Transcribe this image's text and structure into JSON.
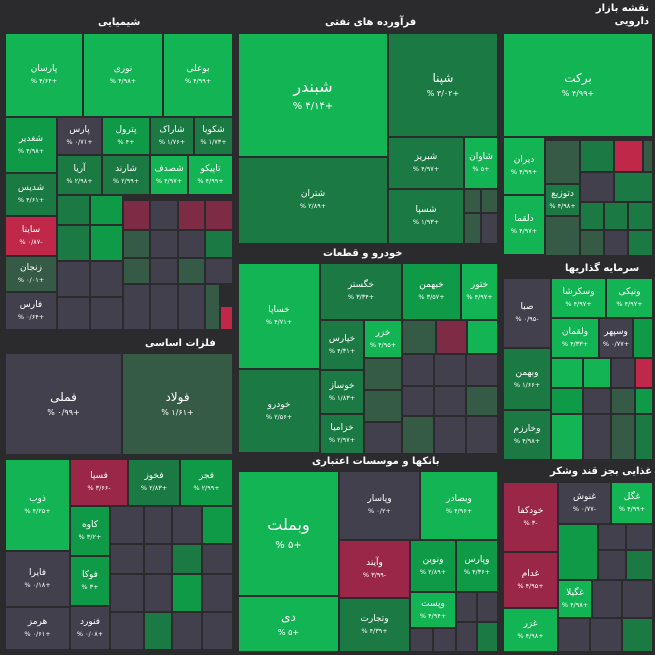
{
  "map_title": [
    "نقشه بازار",
    "دارویی"
  ],
  "sectors": {
    "chem": "شیمیایی",
    "oil": "فرآورده های نفتی",
    "auto": "خودرو و قطعات",
    "metals": "فلزات اساسی",
    "invest": "سرمایه گذاریها",
    "banks": "بانکها و موسسات اعتباری",
    "food": "غذایی بجز قند وشکر"
  },
  "tiles": [
    {
      "id": "parsan",
      "sym": "پارسان",
      "pct": "+۴/۶۴ %"
    },
    {
      "id": "noori",
      "sym": "نوری",
      "pct": "+۴/۹۸ %"
    },
    {
      "id": "boali",
      "sym": "بوعلی",
      "pct": "+۴/۹۹ %"
    },
    {
      "id": "shabandar",
      "sym": "شبندر",
      "pct": "+۴/۱۴ %"
    },
    {
      "id": "shapna",
      "sym": "شپنا",
      "pct": "+۳/۰۲ %"
    },
    {
      "id": "barkat",
      "sym": "برکت",
      "pct": "+۴/۹۹ %"
    },
    {
      "id": "shghadir",
      "sym": "شغدیر",
      "pct": "+۴/۹۸ %"
    },
    {
      "id": "pars",
      "sym": "پارس",
      "pct": "+۰/۷۱ %"
    },
    {
      "id": "petrol",
      "sym": "پترول",
      "pct": "+۴ %"
    },
    {
      "id": "shrak",
      "sym": "شاراک",
      "pct": "+۱/۷۶ %"
    },
    {
      "id": "shkoya",
      "sym": "شکویا",
      "pct": "+۱/۷۳ %"
    },
    {
      "id": "shavan",
      "sym": "شاوان",
      "pct": "+۵ %"
    },
    {
      "id": "shdis",
      "sym": "شدیس",
      "pct": "+۴/۶۱ %"
    },
    {
      "id": "arya",
      "sym": "آریا",
      "pct": "+۲/۹۸ %"
    },
    {
      "id": "sharand",
      "sym": "شارند",
      "pct": "+۲/۹۹ %"
    },
    {
      "id": "shsadf",
      "sym": "شصدف",
      "pct": "+۴/۹۷ %"
    },
    {
      "id": "tapiko",
      "sym": "تاپیکو",
      "pct": "+۴/۹۹ %"
    },
    {
      "id": "shtran",
      "sym": "شتران",
      "pct": "+۲/۸۹ %"
    },
    {
      "id": "shbriz",
      "sym": "شبریز",
      "pct": "+۴/۹۷ %"
    },
    {
      "id": "diran",
      "sym": "دیران",
      "pct": "+۴/۹۹ %"
    },
    {
      "id": "dtozi",
      "sym": "دتوزیع",
      "pct": "+۴/۹۸ %"
    },
    {
      "id": "saina",
      "sym": "ساینا",
      "pct": "-۰/۸۷ %"
    },
    {
      "id": "shsepa",
      "sym": "شسپا",
      "pct": "+۱/۹۳ %"
    },
    {
      "id": "dalqma",
      "sym": "دلقما",
      "pct": "+۴/۹۷ %"
    },
    {
      "id": "zanjan",
      "sym": "زنجان",
      "pct": "+۰/۰۱ %"
    },
    {
      "id": "fars",
      "sym": "فارس",
      "pct": "+۰/۶۴ %"
    },
    {
      "id": "khgostar",
      "sym": "خگستر",
      "pct": "+۳/۳۴ %"
    },
    {
      "id": "khbahman",
      "sym": "خبهمن",
      "pct": "+۳/۵۷ %"
    },
    {
      "id": "khtor",
      "sym": "ختور",
      "pct": "+۴/۹۷ %"
    },
    {
      "id": "seba",
      "sym": "صبا",
      "pct": "-۰/۹۵ %"
    },
    {
      "id": "vaskharsha",
      "sym": "وسکرشا",
      "pct": "+۴/۹۷ %"
    },
    {
      "id": "vnik",
      "sym": "ونیکی",
      "pct": "+۴/۹۷ %"
    },
    {
      "id": "khsapa",
      "sym": "خساپا",
      "pct": "+۴/۷۱ %"
    },
    {
      "id": "khzar",
      "sym": "خزر",
      "pct": "+۴/۹۵ %"
    },
    {
      "id": "khpars",
      "sym": "خپارس",
      "pct": "+۴/۳۱ %"
    },
    {
      "id": "vlqman",
      "sym": "ولقمان",
      "pct": "+۴/۳۳ %"
    },
    {
      "id": "vsepehr",
      "sym": "وسپهر",
      "pct": "+۰/۷۷ %"
    },
    {
      "id": "fameli",
      "sym": "فملی",
      "pct": "+۰/۹۹ %"
    },
    {
      "id": "foolad",
      "sym": "فولاد",
      "pct": "+۱/۶۱ %"
    },
    {
      "id": "khsazh",
      "sym": "خوساز",
      "pct": "+۱/۸۳ %"
    },
    {
      "id": "vbahman",
      "sym": "وبهمن",
      "pct": "+۱/۶۶ %"
    },
    {
      "id": "khodro",
      "sym": "خودرو",
      "pct": "+۲/۵۶ %"
    },
    {
      "id": "khzamya",
      "sym": "خزامیا",
      "pct": "+۲/۹۷ %"
    },
    {
      "id": "vkharzam",
      "sym": "وخارزم",
      "pct": "+۴/۹۸ %"
    },
    {
      "id": "fasepa",
      "sym": "فسپا",
      "pct": "-۳/۶۶ %"
    },
    {
      "id": "fkhuz",
      "sym": "فخوز",
      "pct": "+۲/۸۳ %"
    },
    {
      "id": "fajr",
      "sym": "فجر",
      "pct": "+۲/۹۹ %"
    },
    {
      "id": "vpasar",
      "sym": "وپاسار",
      "pct": "+۰/۲ %"
    },
    {
      "id": "vbsader",
      "sym": "وبصادر",
      "pct": "+۴/۹۶ %"
    },
    {
      "id": "khodkafa",
      "sym": "خودکفا",
      "pct": "-۳ %"
    },
    {
      "id": "ghnosh",
      "sym": "غنوش",
      "pct": "-۰/۷۷ %"
    },
    {
      "id": "ghgol",
      "sym": "غگل",
      "pct": "+۴/۹۹ %"
    },
    {
      "id": "zob",
      "sym": "ذوب",
      "pct": "+۴/۲۵ %"
    },
    {
      "id": "kave",
      "sym": "کاوه",
      "pct": "+۳/۲ %"
    },
    {
      "id": "vbmellat",
      "sym": "وبملت",
      "pct": "+۵ %"
    },
    {
      "id": "vayand",
      "sym": "وآیند",
      "pct": "-۳/۹۹ %"
    },
    {
      "id": "vnovin",
      "sym": "ونوین",
      "pct": "+۲/۸۹ %"
    },
    {
      "id": "vipars",
      "sym": "وپارس",
      "pct": "+۴/۳۶ %"
    },
    {
      "id": "faira",
      "sym": "فایرا",
      "pct": "+۰/۱۸ %"
    },
    {
      "id": "foka",
      "sym": "فوکا",
      "pct": "+۳ %"
    },
    {
      "id": "ghadam",
      "sym": "غدام",
      "pct": "+۴/۹۵ %"
    },
    {
      "id": "ghgola",
      "sym": "غگیلا",
      "pct": "+۴/۹۸ %"
    },
    {
      "id": "vtejarat",
      "sym": "وتجارت",
      "pct": "+۴/۳۹ %"
    },
    {
      "id": "vpost",
      "sym": "وپست",
      "pct": "+۴/۹۴ %"
    },
    {
      "id": "di",
      "sym": "دی",
      "pct": "+۵ %"
    },
    {
      "id": "hormoz",
      "sym": "هرمز",
      "pct": "+۰/۶۱ %"
    },
    {
      "id": "foord",
      "sym": "فنورد",
      "pct": "+۰/۰۸ %"
    },
    {
      "id": "ghzar",
      "sym": "غزر",
      "pct": "+۴/۹۸ %"
    }
  ],
  "colors": {
    "background": "#2b2b2e",
    "strong_green": "#13b454",
    "green": "#0f9a47",
    "dark_green": "#1b7a44",
    "muted_green": "#355a46",
    "neutral": "#43404d",
    "red": "#c0284a",
    "dark_red": "#9a2748"
  }
}
